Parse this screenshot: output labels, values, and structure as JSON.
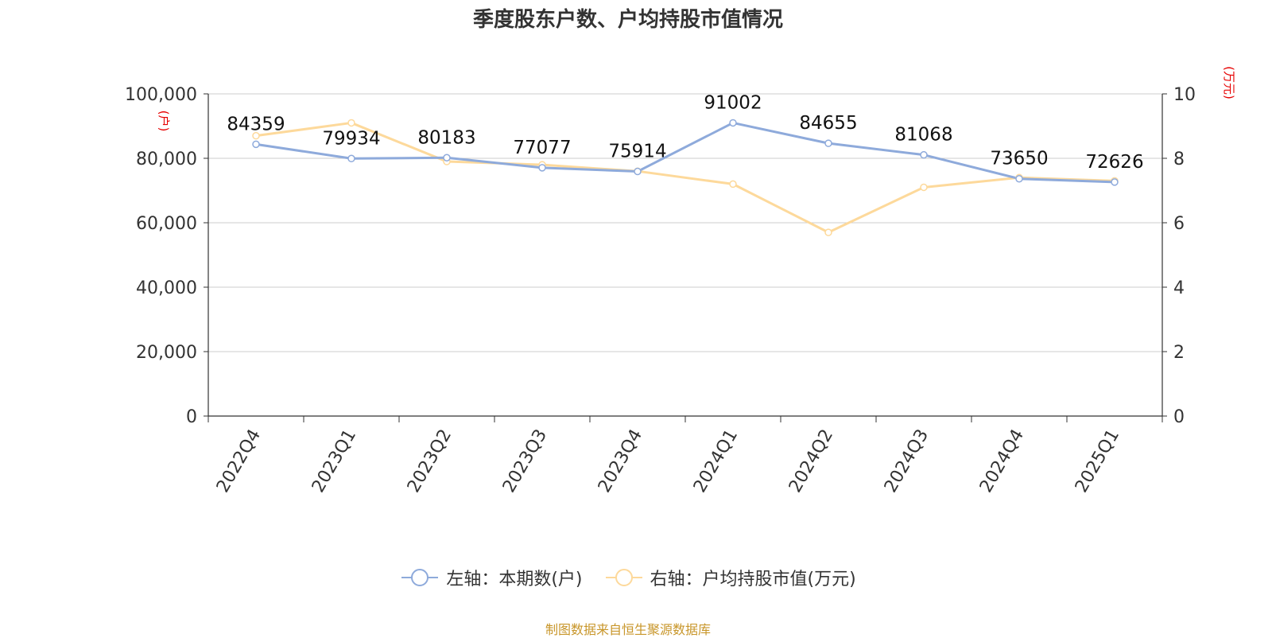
{
  "chart_data": {
    "type": "line",
    "title": "季度股东户数、户均持股市值情况",
    "categories": [
      "2022Q4",
      "2023Q1",
      "2023Q2",
      "2023Q3",
      "2023Q4",
      "2024Q1",
      "2024Q2",
      "2024Q3",
      "2024Q4",
      "2025Q1"
    ],
    "series": [
      {
        "name": "左轴：本期数(户)",
        "axis": "left",
        "color": "#8eaadb",
        "values": [
          84359,
          79934,
          80183,
          77077,
          75914,
          91002,
          84655,
          81068,
          73650,
          72626
        ]
      },
      {
        "name": "右轴：户均持股市值(万元)",
        "axis": "right",
        "color": "#fdd99b",
        "values": [
          8.7,
          9.1,
          7.9,
          7.8,
          7.6,
          7.2,
          5.7,
          7.1,
          7.4,
          7.3
        ]
      }
    ],
    "y_left": {
      "unit": "(户)",
      "ylim": [
        0,
        100000
      ],
      "ticks": [
        "0",
        "20,000",
        "40,000",
        "60,000",
        "80,000",
        "100,000"
      ]
    },
    "y_right": {
      "unit": "(万元)",
      "ylim": [
        0,
        10
      ],
      "ticks": [
        "0",
        "2",
        "4",
        "6",
        "8",
        "10"
      ]
    },
    "grid": true,
    "legend": "bottom-center",
    "source": "制图数据来自恒生聚源数据库"
  }
}
